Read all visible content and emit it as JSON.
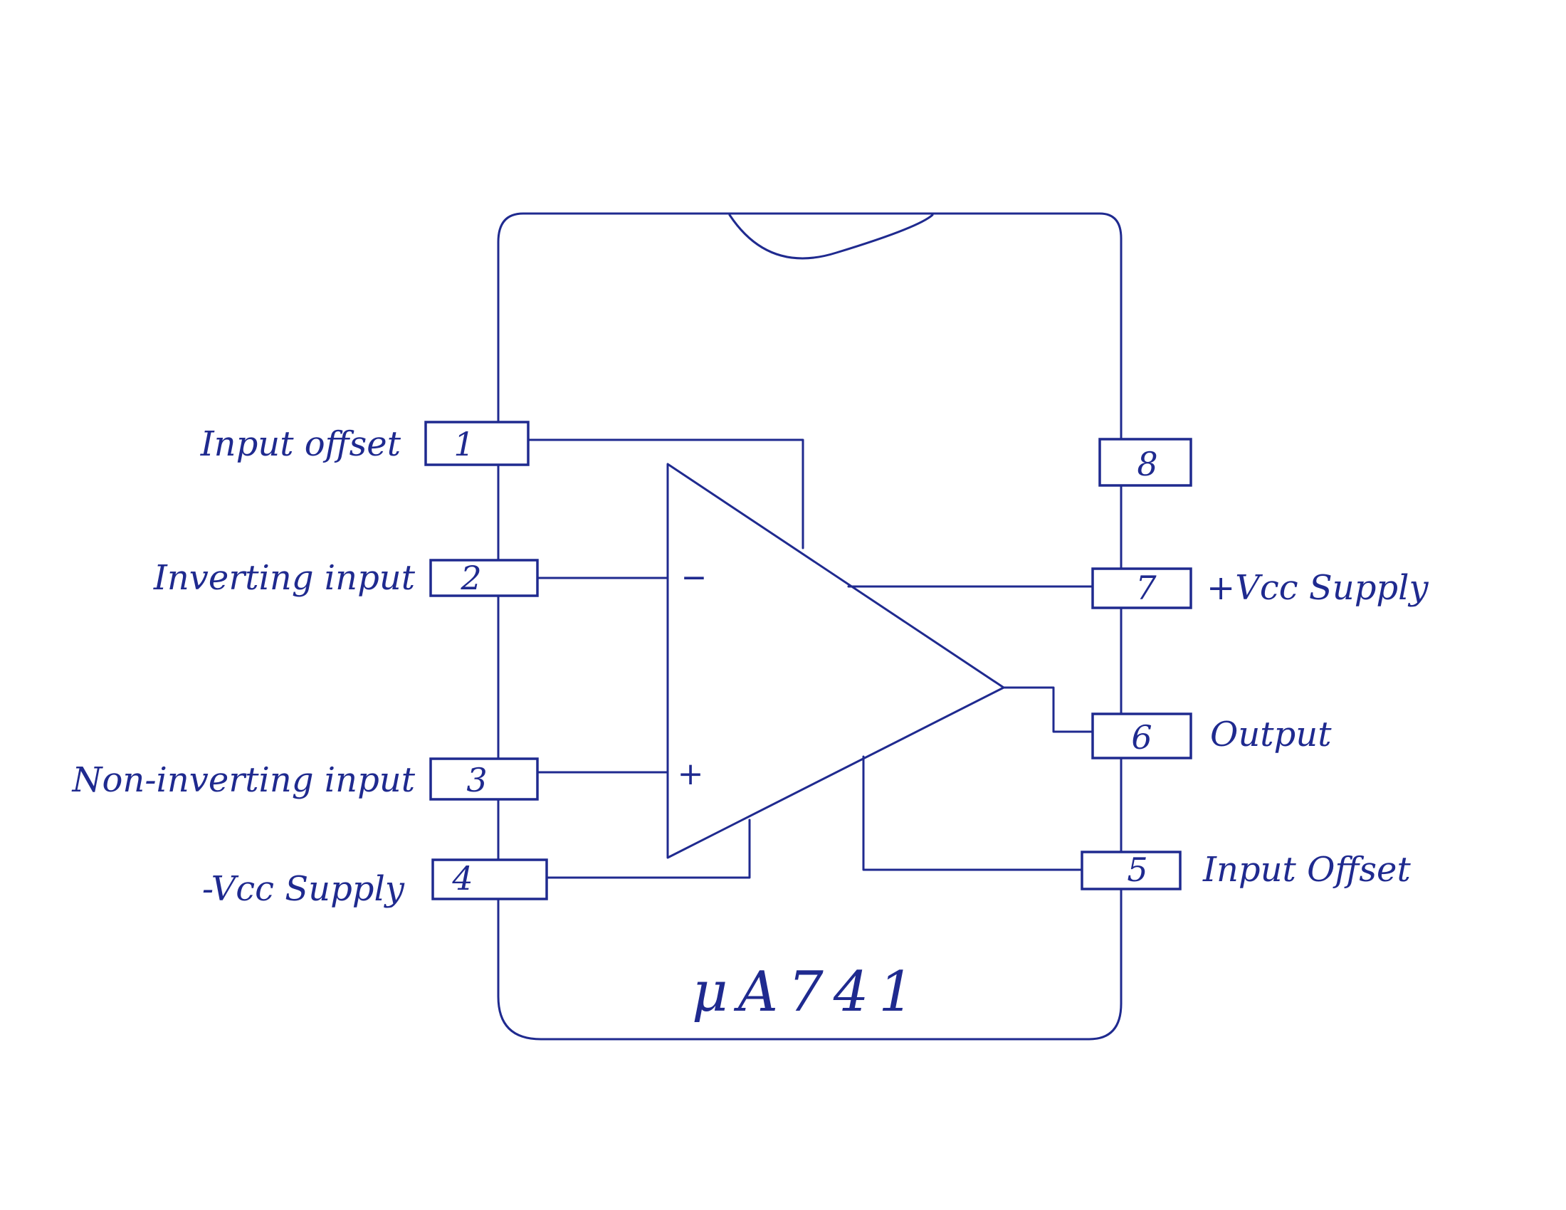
{
  "chip": {
    "name": "μA741"
  },
  "pins": [
    {
      "number": "1",
      "label": "Input offset"
    },
    {
      "number": "2",
      "label": "Inverting input"
    },
    {
      "number": "3",
      "label": "Non-inverting input"
    },
    {
      "number": "4",
      "label": "-Vcc Supply"
    },
    {
      "number": "5",
      "label": "Input Offset"
    },
    {
      "number": "6",
      "label": "Output"
    },
    {
      "number": "7",
      "label": "+Vcc Supply"
    },
    {
      "number": "8",
      "label": ""
    }
  ],
  "opamp": {
    "inverting_sign": "−",
    "noninverting_sign": "+"
  },
  "colors": {
    "ink": "#1f2a8f",
    "background": "#ffffff"
  }
}
